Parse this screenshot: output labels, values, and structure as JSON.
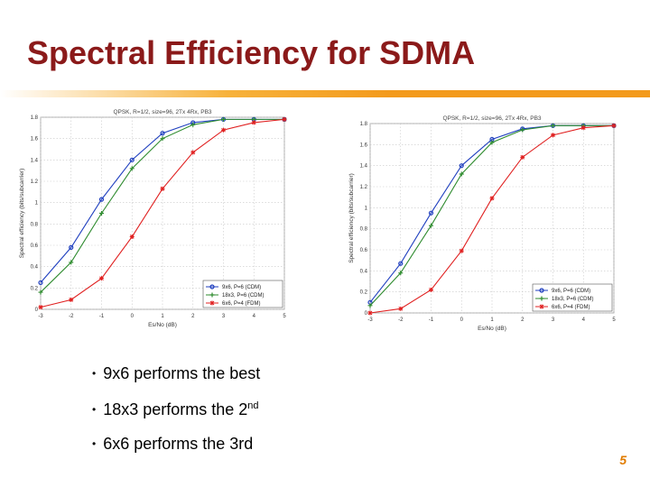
{
  "slide": {
    "title": "Spectral Efficiency for SDMA",
    "page_number": "5",
    "accent_color": "#8b1a1a",
    "rule_color": "#f39a1c"
  },
  "bullets": [
    {
      "text": "9x6 performs the best",
      "sup": "",
      "tail": ""
    },
    {
      "text": "18x3 performs the 2",
      "sup": "nd",
      "tail": ""
    },
    {
      "text": "6x6 performs the 3rd",
      "sup": "",
      "tail": ""
    }
  ],
  "chart_data": [
    {
      "type": "line",
      "title": "QPSK, R=1/2, size=96, 2Tx 4Rx, PB3",
      "xlabel": "Es/No (dB)",
      "ylabel": "Spectral efficiency (bits/subcarrier)",
      "xlim": [
        -3,
        5
      ],
      "ylim": [
        0,
        1.8
      ],
      "xticks": [
        "-3",
        "-2",
        "-1",
        "0",
        "1",
        "2",
        "3",
        "4",
        "5"
      ],
      "yticks": [
        "0",
        "0.2",
        "0.4",
        "0.6",
        "0.8",
        "1",
        "1.2",
        "1.4",
        "1.6",
        "1.8"
      ],
      "grid": true,
      "legend_position": "bottom-right",
      "x": [
        -3,
        -2,
        -1,
        0,
        1,
        2,
        3,
        4,
        5
      ],
      "series": [
        {
          "name": "9x6, P=6 (CDM)",
          "color": "#1f3fbf",
          "marker": "circle",
          "values": [
            0.25,
            0.58,
            1.03,
            1.4,
            1.65,
            1.75,
            1.78,
            1.78,
            1.78
          ]
        },
        {
          "name": "18x3, P=6 (CDM)",
          "color": "#2e8b2e",
          "marker": "plus",
          "values": [
            0.16,
            0.44,
            0.9,
            1.32,
            1.6,
            1.73,
            1.78,
            1.78,
            1.78
          ]
        },
        {
          "name": "6x6, P=4 (FDM)",
          "color": "#e02020",
          "marker": "star",
          "values": [
            0.02,
            0.09,
            0.29,
            0.68,
            1.13,
            1.47,
            1.68,
            1.75,
            1.78
          ]
        }
      ]
    },
    {
      "type": "line",
      "title": "QPSK, R=1/2, size=96, 2Tx 4Rx, PB3",
      "xlabel": "Es/No (dB)",
      "ylabel": "Spectral efficiency (bits/subcarrier)",
      "xlim": [
        -3,
        5
      ],
      "ylim": [
        0,
        1.8
      ],
      "xticks": [
        "-3",
        "-2",
        "-1",
        "0",
        "1",
        "2",
        "3",
        "4",
        "5"
      ],
      "yticks": [
        "0",
        "0.2",
        "0.4",
        "0.6",
        "0.8",
        "1",
        "1.2",
        "1.4",
        "1.6",
        "1.8"
      ],
      "grid": true,
      "legend_position": "bottom-right",
      "x": [
        -3,
        -2,
        -1,
        0,
        1,
        2,
        3,
        4,
        5
      ],
      "series": [
        {
          "name": "9x6, P=6 (CDM)",
          "color": "#1f3fbf",
          "marker": "circle",
          "values": [
            0.1,
            0.47,
            0.95,
            1.4,
            1.65,
            1.75,
            1.78,
            1.78,
            1.78
          ]
        },
        {
          "name": "18x3, P=6 (CDM)",
          "color": "#2e8b2e",
          "marker": "plus",
          "values": [
            0.07,
            0.38,
            0.83,
            1.32,
            1.62,
            1.74,
            1.78,
            1.78,
            1.78
          ]
        },
        {
          "name": "6x6, P=4 (FDM)",
          "color": "#e02020",
          "marker": "star",
          "values": [
            0.0,
            0.04,
            0.22,
            0.59,
            1.09,
            1.48,
            1.69,
            1.76,
            1.78
          ]
        }
      ]
    }
  ]
}
